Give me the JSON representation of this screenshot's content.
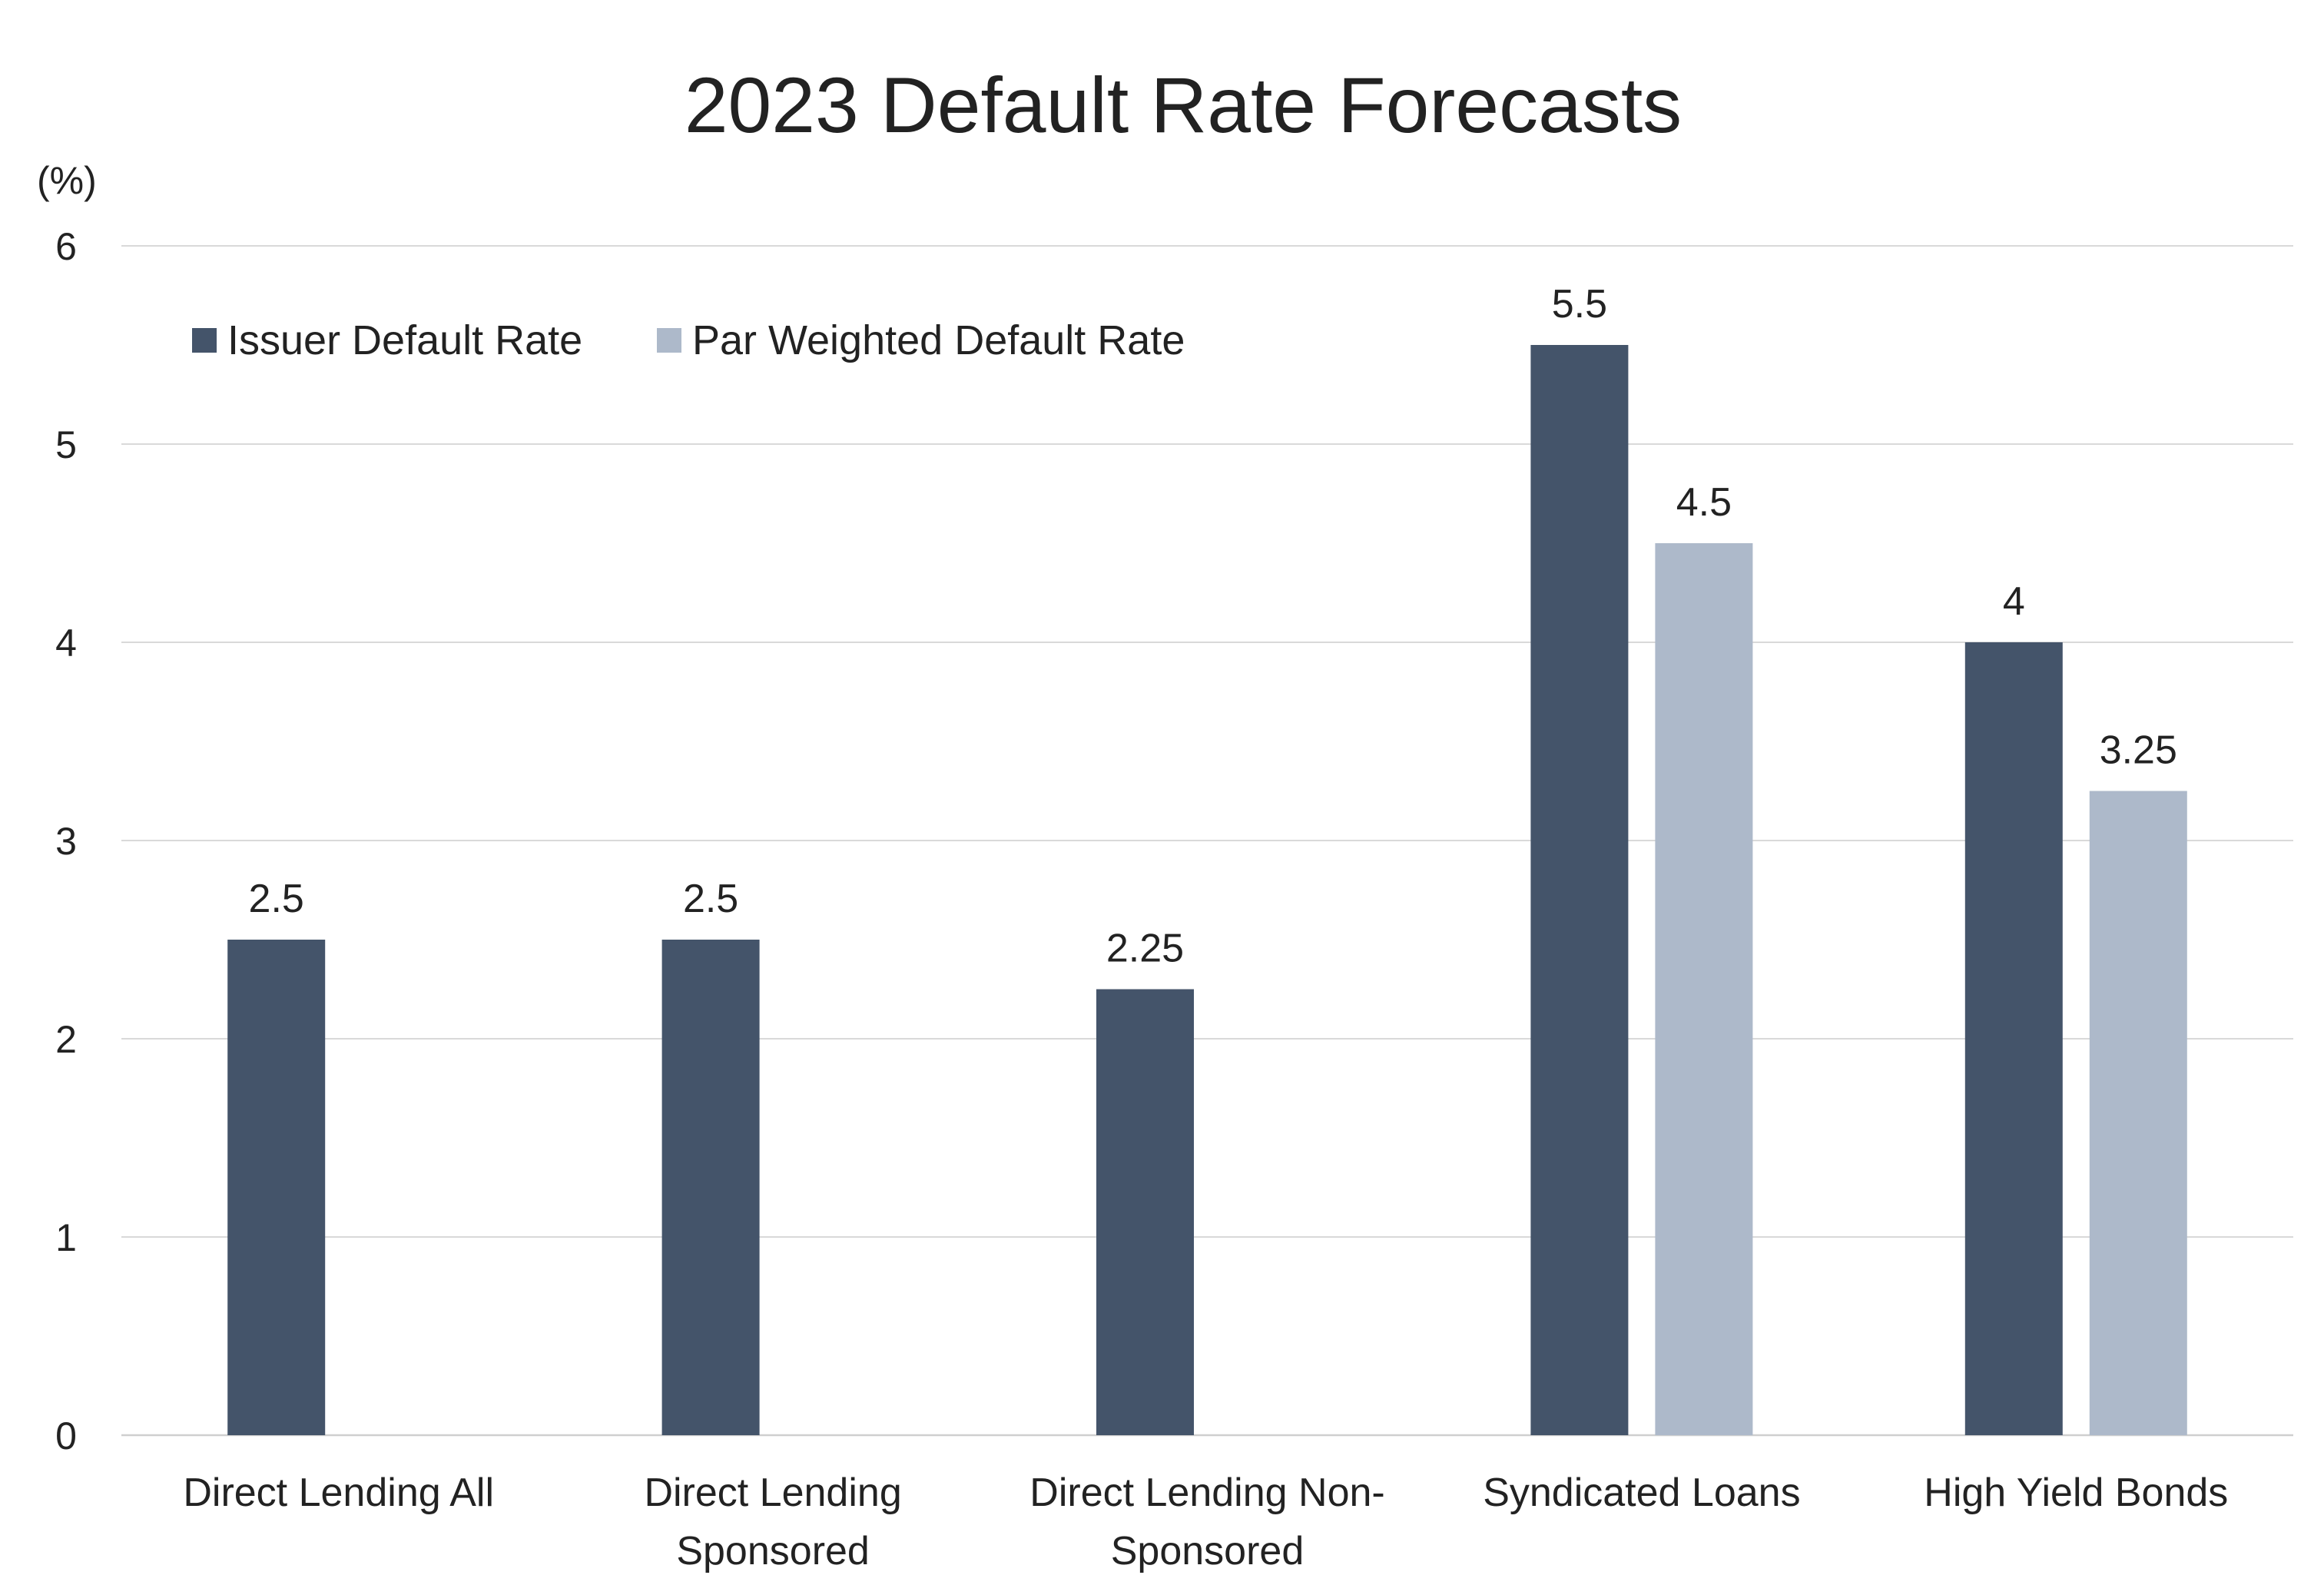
{
  "chart_data": {
    "type": "bar",
    "title": "2023 Default Rate Forecasts",
    "ylabel": "(%)",
    "xlabel": "",
    "ylim": [
      0,
      6
    ],
    "yticks": [
      0,
      1,
      2,
      3,
      4,
      5,
      6
    ],
    "grid": true,
    "legend_position": "top-left",
    "categories": [
      [
        "Direct Lending All"
      ],
      [
        "Direct Lending",
        "Sponsored"
      ],
      [
        "Direct Lending Non-",
        "Sponsored"
      ],
      [
        "Syndicated Loans"
      ],
      [
        "High Yield Bonds"
      ]
    ],
    "series": [
      {
        "name": "Issuer Default Rate",
        "color": "#44546a",
        "values": [
          2.5,
          2.5,
          2.25,
          5.5,
          4
        ],
        "labels": [
          "2.5",
          "2.5",
          "2.25",
          "5.5",
          "4"
        ]
      },
      {
        "name": "Par Weighted Default Rate",
        "color": "#adb9ca",
        "values": [
          null,
          null,
          null,
          4.5,
          3.25
        ],
        "labels": [
          "",
          "",
          "",
          "4.5",
          "3.25"
        ]
      }
    ]
  }
}
